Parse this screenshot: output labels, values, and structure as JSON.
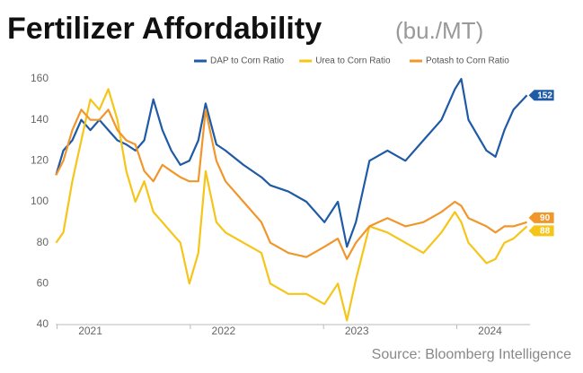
{
  "chart_data": {
    "type": "line",
    "title": "Fertilizer Affordability",
    "subtitle": "(bu./MT)",
    "source": "Source: Bloomberg Intelligence",
    "x": [
      2020.743,
      2020.797,
      2020.865,
      2020.932,
      2021.0,
      2021.068,
      2021.135,
      2021.203,
      2021.27,
      2021.338,
      2021.405,
      2021.473,
      2021.541,
      2021.608,
      2021.676,
      2021.743,
      2021.811,
      2021.865,
      2021.946,
      2022.014,
      2022.149,
      2022.284,
      2022.351,
      2022.486,
      2022.622,
      2022.757,
      2022.858,
      2022.926,
      2022.993,
      2023.095,
      2023.23,
      2023.365,
      2023.5,
      2023.635,
      2023.736,
      2023.784,
      2023.838,
      2023.973,
      2024.041,
      2024.108,
      2024.176,
      2024.277
    ],
    "series": [
      {
        "name": "DAP to Corn Ratio",
        "color": "#1f5aa6",
        "values": [
          113,
          125,
          130,
          140,
          135,
          140,
          135,
          130,
          128,
          125,
          130,
          150,
          135,
          125,
          118,
          120,
          130,
          148,
          128,
          125,
          118,
          112,
          108,
          105,
          100,
          90,
          100,
          78,
          90,
          120,
          125,
          120,
          130,
          140,
          155,
          160,
          140,
          125,
          122,
          135,
          145,
          152
        ]
      },
      {
        "name": "Urea to Corn Ratio",
        "color": "#f5c518",
        "values": [
          80,
          85,
          110,
          130,
          150,
          145,
          155,
          140,
          115,
          100,
          110,
          95,
          90,
          85,
          80,
          60,
          75,
          115,
          90,
          85,
          80,
          75,
          60,
          55,
          55,
          50,
          60,
          42,
          62,
          88,
          85,
          80,
          75,
          85,
          95,
          90,
          80,
          70,
          72,
          80,
          82,
          88
        ]
      },
      {
        "name": "Potash to Corn Ratio",
        "color": "#f0962a",
        "values": [
          113,
          120,
          135,
          145,
          140,
          140,
          145,
          135,
          130,
          128,
          115,
          110,
          118,
          115,
          112,
          110,
          110,
          145,
          120,
          110,
          100,
          90,
          80,
          75,
          73,
          78,
          82,
          72,
          80,
          88,
          92,
          88,
          90,
          95,
          100,
          98,
          92,
          88,
          85,
          88,
          88,
          90
        ]
      }
    ],
    "xlim": [
      2020.74,
      2024.3
    ],
    "xticks": [
      2021,
      2022,
      2023,
      2024
    ],
    "ylim": [
      40,
      165
    ],
    "yticks": [
      40,
      60,
      80,
      100,
      120,
      140,
      160
    ],
    "grid": false,
    "legend": "top-right"
  }
}
